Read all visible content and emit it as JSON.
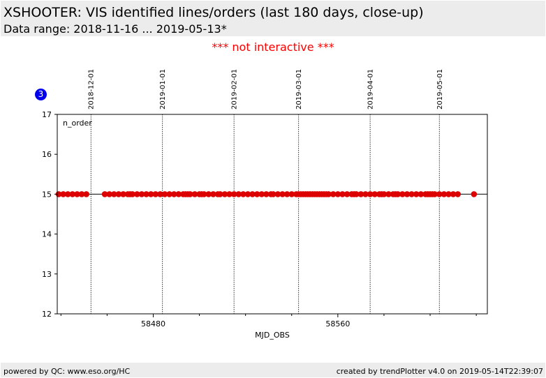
{
  "header": {
    "title": "XSHOOTER: VIS identified lines/orders (last 180 days, close-up)",
    "subtitle": "Data range: 2018-11-16 ... 2019-05-13*"
  },
  "notice": "*** not interactive ***",
  "badge": "3",
  "footer": {
    "left": "powered by QC: www.eso.org/HC",
    "right": "created by trendPlotter v4.0 on 2019-05-14T22:39:07"
  },
  "chart_data": {
    "type": "scatter",
    "title": "",
    "xlabel": "MJD_OBS",
    "ylabel": "",
    "panel_label": "n_order",
    "xlim": [
      58438.4,
      58624.8
    ],
    "ylim": [
      12,
      17
    ],
    "x_ticks": [
      58480,
      58560
    ],
    "x_ticks_minor": [
      58440,
      58460,
      58500,
      58520,
      58540,
      58580,
      58600,
      58620
    ],
    "y_ticks": [
      12,
      13,
      14,
      15,
      16,
      17
    ],
    "reference_line_y": 15,
    "date_markers": [
      {
        "label": "2018-12-01",
        "mjd": 58453
      },
      {
        "label": "2019-01-01",
        "mjd": 58484
      },
      {
        "label": "2019-02-01",
        "mjd": 58515
      },
      {
        "label": "2019-03-01",
        "mjd": 58543
      },
      {
        "label": "2019-04-01",
        "mjd": 58574
      },
      {
        "label": "2019-05-01",
        "mjd": 58604
      },
      {
        "label": "",
        "mjd": 58634
      }
    ],
    "marker_color": "#dd0000",
    "series": [
      {
        "x": [
          58439,
          58441,
          58443,
          58445,
          58447,
          58449,
          58451,
          58459,
          58461,
          58463,
          58465,
          58467,
          58469,
          58470,
          58471,
          58473,
          58475,
          58477,
          58479,
          58481,
          58483,
          58485,
          58487,
          58489,
          58491,
          58493,
          58494,
          58495,
          58496,
          58498,
          58500,
          58501,
          58502,
          58504,
          58506,
          58508,
          58509,
          58511,
          58513,
          58515,
          58517,
          58519,
          58521,
          58523,
          58525,
          58527,
          58529,
          58531,
          58532,
          58534,
          58536,
          58538,
          58540,
          58542,
          58543,
          58544,
          58545,
          58546,
          58547,
          58548,
          58549,
          58550,
          58551,
          58552,
          58553,
          58554,
          58555,
          58556,
          58558,
          58560,
          58562,
          58564,
          58566,
          58567,
          58568,
          58570,
          58572,
          58574,
          58576,
          58578,
          58579,
          58580,
          58582,
          58584,
          58585,
          58586,
          58588,
          58590,
          58592,
          58594,
          58596,
          58598,
          58599,
          58600,
          58601,
          58602,
          58604,
          58606,
          58608,
          58610,
          58612,
          58619
        ],
        "y": [
          15,
          15,
          15,
          15,
          15,
          15,
          15,
          15,
          15,
          15,
          15,
          15,
          15,
          15,
          15,
          15,
          15,
          15,
          15,
          15,
          15,
          15,
          15,
          15,
          15,
          15,
          15,
          15,
          15,
          15,
          15,
          15,
          15,
          15,
          15,
          15,
          15,
          15,
          15,
          15,
          15,
          15,
          15,
          15,
          15,
          15,
          15,
          15,
          15,
          15,
          15,
          15,
          15,
          15,
          15,
          15,
          15,
          15,
          15,
          15,
          15,
          15,
          15,
          15,
          15,
          15,
          15,
          15,
          15,
          15,
          15,
          15,
          15,
          15,
          15,
          15,
          15,
          15,
          15,
          15,
          15,
          15,
          15,
          15,
          15,
          15,
          15,
          15,
          15,
          15,
          15,
          15,
          15,
          15,
          15,
          15,
          15,
          15,
          15,
          15,
          15,
          15
        ]
      }
    ]
  }
}
